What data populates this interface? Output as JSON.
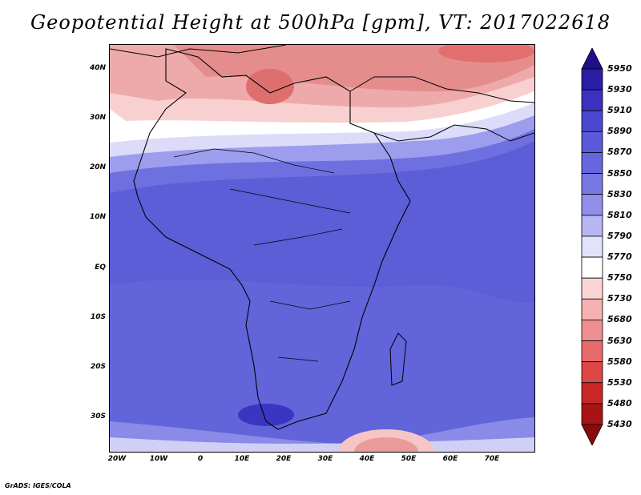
{
  "title": "Geopotential Height at 500hPa [gpm], VT: 2017022618",
  "credit": "GrADS: IGES/COLA",
  "map": {
    "y_axis_labels": [
      "40N",
      "30N",
      "20N",
      "10N",
      "EQ",
      "10S",
      "20S",
      "30S"
    ],
    "x_axis_labels": [
      "20W",
      "10W",
      "0",
      "10E",
      "20E",
      "30E",
      "40E",
      "50E",
      "60E",
      "70E"
    ]
  },
  "colorbar": {
    "levels": [
      "5950",
      "5930",
      "5910",
      "5890",
      "5870",
      "5850",
      "5830",
      "5810",
      "5790",
      "5770",
      "5750",
      "5730",
      "5680",
      "5630",
      "5580",
      "5530",
      "5480",
      "5430"
    ],
    "colors": [
      "#1e0f8c",
      "#2a1ea6",
      "#3a32be",
      "#4b48cf",
      "#5a5ad8",
      "#6666de",
      "#7777e4",
      "#9090ea",
      "#b7b7f2",
      "#e2e2fb",
      "#ffffff",
      "#fbd5d5",
      "#f6b2b2",
      "#ef8f8f",
      "#e86a6a",
      "#df4646",
      "#c92727",
      "#a81414",
      "#8a0b0b"
    ]
  }
}
